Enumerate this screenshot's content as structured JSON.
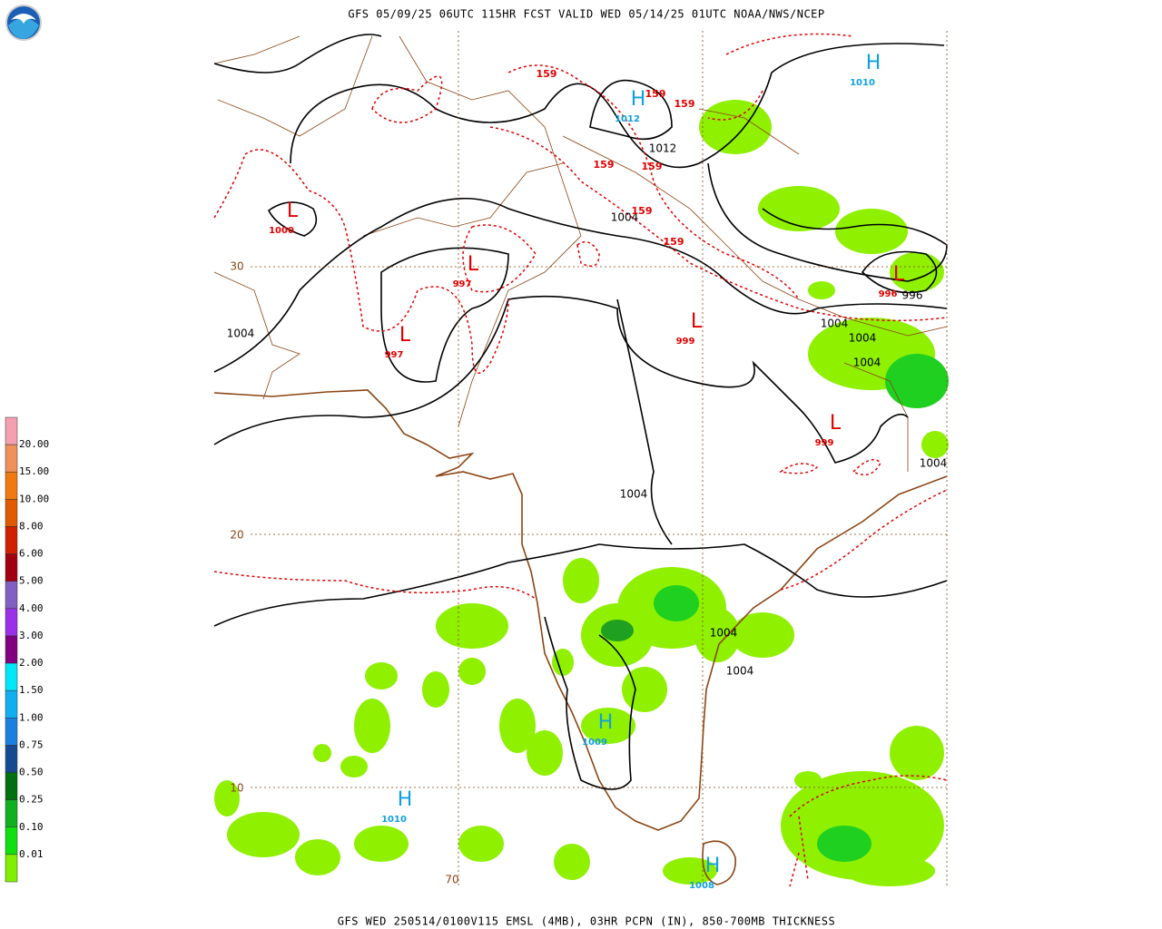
{
  "header": {
    "title": "GFS 05/09/25 06UTC 115HR FCST VALID WED 05/14/25 01UTC NOAA/NWS/NCEP"
  },
  "footer": {
    "caption": "GFS WED 250514/0100V115 EMSL (4MB), 03HR PCPN (IN), 850-700MB THICKNESS"
  },
  "legend": {
    "labels": [
      "20.00",
      "15.00",
      "10.00",
      "8.00",
      "6.00",
      "5.00",
      "4.00",
      "3.00",
      "2.00",
      "1.50",
      "1.00",
      "0.75",
      "0.50",
      "0.25",
      "0.10",
      "0.01"
    ]
  },
  "pressure_centers": [
    {
      "symbol": "H",
      "label": "1010"
    },
    {
      "symbol": "H",
      "label": "1012"
    },
    {
      "symbol": "L",
      "label": "1000"
    },
    {
      "symbol": "L",
      "label": "997"
    },
    {
      "symbol": "L",
      "label": "997"
    },
    {
      "symbol": "L",
      "label": "999"
    },
    {
      "symbol": "L",
      "label": "999"
    },
    {
      "symbol": "L",
      "label": "996"
    },
    {
      "symbol": "H",
      "label": "1009"
    },
    {
      "symbol": "H",
      "label": "1010"
    },
    {
      "symbol": "H",
      "label": "1008"
    }
  ],
  "isobar_labels": [
    "1012",
    "1004",
    "1004",
    "1004",
    "1004",
    "1004",
    "1004",
    "1004",
    "1004",
    "1004",
    "996"
  ],
  "thickness_labels": [
    "159",
    "159",
    "159",
    "159",
    "159",
    "159",
    "159"
  ],
  "grid_labels": [
    "30",
    "20",
    "10",
    "70"
  ]
}
